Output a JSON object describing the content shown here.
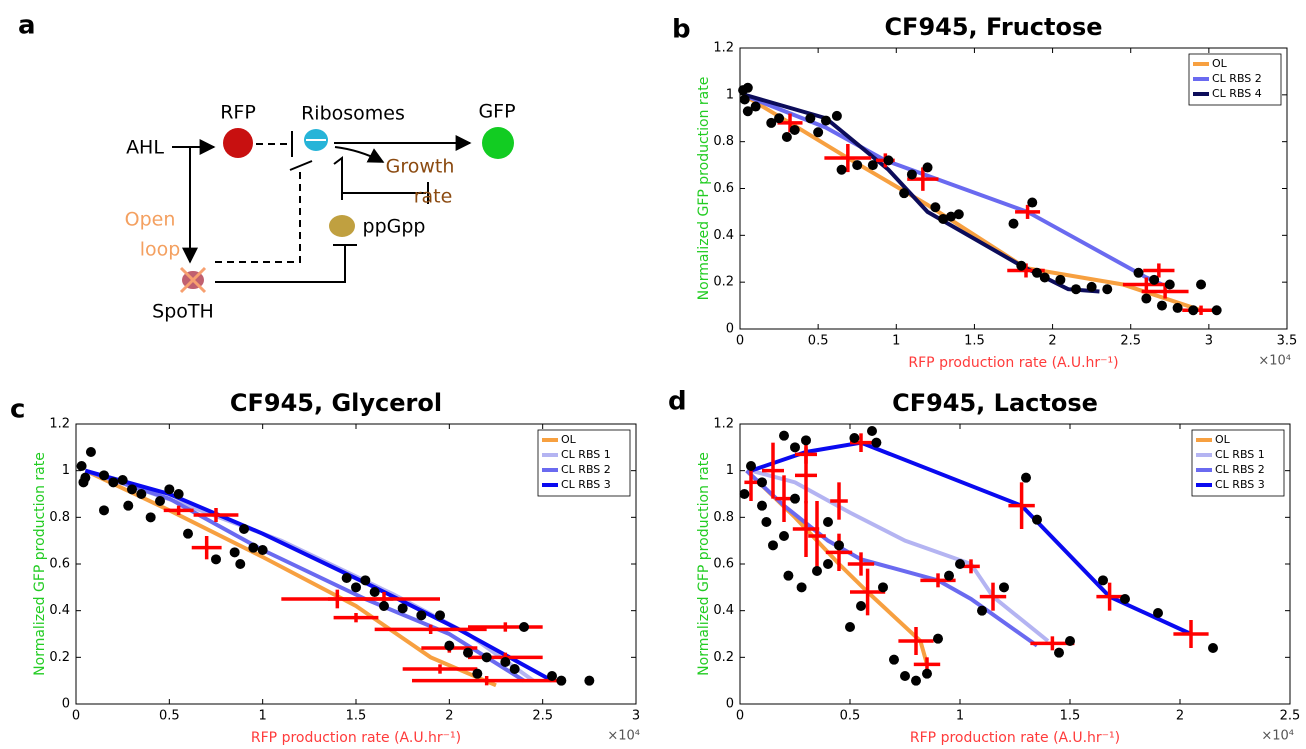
{
  "panel_labels": [
    "a",
    "b",
    "c",
    "d"
  ],
  "diagram": {
    "nodes": [
      {
        "label": "AHL"
      },
      {
        "label": "RFP"
      },
      {
        "label": "Ribosomes"
      },
      {
        "label": "GFP"
      },
      {
        "lines": [
          "Growth",
          "rate"
        ]
      },
      {
        "label": "ppGpp"
      },
      {
        "lines": [
          "Open",
          "loop"
        ]
      },
      {
        "label": "SpoTH"
      }
    ]
  },
  "chart_data": [
    {
      "type": "line",
      "title": "CF945, Fructose",
      "xlabel": "RFP production rate (A.U.hr⁻¹)",
      "ylabel": "Normalized GFP production rate",
      "xlabel_color": "#ff3b3b",
      "ylabel_color": "#22cc22",
      "x_exponent_label": "×10⁴",
      "xlim": [
        0,
        3.5
      ],
      "xticks": [
        0,
        0.5,
        1,
        1.5,
        2,
        2.5,
        3,
        3.5
      ],
      "ylim": [
        0,
        1.2
      ],
      "yticks": [
        0,
        0.2,
        0.4,
        0.6,
        0.8,
        1,
        1.2
      ],
      "legend": "upper right",
      "series": [
        {
          "name": "OL",
          "color": "#f7a040",
          "x": [
            0.02,
            0.32,
            0.69,
            1.2,
            1.83,
            2.45,
            2.95
          ],
          "values": [
            1.0,
            0.88,
            0.73,
            0.53,
            0.26,
            0.19,
            0.08
          ]
        },
        {
          "name": "CL RBS 2",
          "color": "#6a6af0",
          "x": [
            0.02,
            0.55,
            0.93,
            1.84,
            2.6,
            2.7
          ],
          "values": [
            1.0,
            0.86,
            0.72,
            0.5,
            0.22,
            0.19
          ]
        },
        {
          "name": "CL RBS 4",
          "color": "#0c0c5a",
          "x": [
            0.03,
            0.55,
            0.95,
            1.2,
            1.8,
            2.1,
            2.3
          ],
          "values": [
            1.0,
            0.9,
            0.68,
            0.5,
            0.27,
            0.17,
            0.16
          ]
        }
      ],
      "points": {
        "color": "#000000",
        "x": [
          0.02,
          0.05,
          0.03,
          0.1,
          0.05,
          0.2,
          0.25,
          0.35,
          0.3,
          0.45,
          0.5,
          0.55,
          0.62,
          0.65,
          0.75,
          0.85,
          0.95,
          1.05,
          1.1,
          1.2,
          1.25,
          1.35,
          1.3,
          1.4,
          1.75,
          1.8,
          1.9,
          1.87,
          1.95,
          2.05,
          2.15,
          2.25,
          2.35,
          2.55,
          2.6,
          2.7,
          2.8,
          2.9,
          3.05,
          2.95,
          2.65,
          2.75
        ],
        "y": [
          1.02,
          1.03,
          0.98,
          0.95,
          0.93,
          0.88,
          0.9,
          0.85,
          0.82,
          0.9,
          0.84,
          0.89,
          0.91,
          0.68,
          0.7,
          0.7,
          0.72,
          0.58,
          0.66,
          0.69,
          0.52,
          0.48,
          0.47,
          0.49,
          0.45,
          0.27,
          0.24,
          0.54,
          0.22,
          0.21,
          0.17,
          0.18,
          0.17,
          0.24,
          0.13,
          0.1,
          0.09,
          0.08,
          0.08,
          0.19,
          0.21,
          0.19
        ]
      },
      "error_bars": {
        "color": "#ff0000",
        "x": [
          0.32,
          0.69,
          0.93,
          1.17,
          1.84,
          1.83,
          2.6,
          2.68,
          2.72,
          2.95
        ],
        "y": [
          0.88,
          0.73,
          0.72,
          0.64,
          0.5,
          0.25,
          0.19,
          0.25,
          0.16,
          0.08
        ],
        "xerr": [
          0.08,
          0.15,
          0.06,
          0.1,
          0.08,
          0.12,
          0.15,
          0.1,
          0.15,
          0.12
        ],
        "yerr": [
          0.04,
          0.06,
          0.03,
          0.05,
          0.03,
          0.03,
          0.03,
          0.03,
          0.03,
          0.02
        ]
      }
    },
    {
      "type": "line",
      "title": "CF945, Glycerol",
      "xlabel": "RFP production rate (A.U.hr⁻¹)",
      "ylabel": "Normalized GFP production rate",
      "xlabel_color": "#ff3b3b",
      "ylabel_color": "#22cc22",
      "x_exponent_label": "×10⁴",
      "xlim": [
        0,
        3
      ],
      "xticks": [
        0,
        0.5,
        1,
        1.5,
        2,
        2.5,
        3
      ],
      "ylim": [
        0,
        1.2
      ],
      "yticks": [
        0,
        0.2,
        0.4,
        0.6,
        0.8,
        1,
        1.2
      ],
      "legend": "upper right",
      "series": [
        {
          "name": "OL",
          "color": "#f7a040",
          "x": [
            0.05,
            0.5,
            1.0,
            1.5,
            1.9,
            2.25
          ],
          "values": [
            1.0,
            0.83,
            0.63,
            0.42,
            0.2,
            0.08
          ]
        },
        {
          "name": "CL RBS 1",
          "color": "#b4b4f2",
          "x": [
            0.05,
            0.6,
            1.1,
            1.7,
            2.1,
            2.45
          ],
          "values": [
            1.0,
            0.85,
            0.7,
            0.47,
            0.3,
            0.1
          ]
        },
        {
          "name": "CL RBS 2",
          "color": "#6a6af0",
          "x": [
            0.05,
            0.5,
            1.0,
            1.55,
            2.0,
            2.4
          ],
          "values": [
            1.0,
            0.88,
            0.66,
            0.45,
            0.3,
            0.1
          ]
        },
        {
          "name": "CL RBS 3",
          "color": "#0a0af0",
          "x": [
            0.05,
            0.5,
            1.0,
            1.6,
            2.05,
            2.55
          ],
          "values": [
            1.0,
            0.9,
            0.73,
            0.5,
            0.32,
            0.1
          ]
        }
      ],
      "points": {
        "color": "#000000",
        "x": [
          0.03,
          0.05,
          0.04,
          0.08,
          0.15,
          0.2,
          0.25,
          0.3,
          0.28,
          0.35,
          0.45,
          0.5,
          0.55,
          0.4,
          0.6,
          0.75,
          0.85,
          0.9,
          0.95,
          0.88,
          1.0,
          1.45,
          1.55,
          1.5,
          1.6,
          1.65,
          1.75,
          1.85,
          2.0,
          2.1,
          2.2,
          2.3,
          2.4,
          2.35,
          2.55,
          2.6,
          2.75,
          1.95,
          2.15,
          0.15
        ],
        "y": [
          1.02,
          0.97,
          0.95,
          1.08,
          0.98,
          0.95,
          0.96,
          0.92,
          0.85,
          0.9,
          0.87,
          0.92,
          0.9,
          0.8,
          0.73,
          0.62,
          0.65,
          0.75,
          0.67,
          0.6,
          0.66,
          0.54,
          0.53,
          0.5,
          0.48,
          0.42,
          0.41,
          0.38,
          0.25,
          0.22,
          0.2,
          0.18,
          0.33,
          0.15,
          0.12,
          0.1,
          0.1,
          0.38,
          0.13,
          0.83
        ]
      },
      "error_bars": {
        "color": "#ff0000",
        "x": [
          0.55,
          0.75,
          0.7,
          1.4,
          1.5,
          1.65,
          1.9,
          2.0,
          2.3,
          2.3,
          1.95,
          2.2
        ],
        "y": [
          0.83,
          0.81,
          0.67,
          0.45,
          0.37,
          0.45,
          0.32,
          0.24,
          0.33,
          0.2,
          0.15,
          0.1
        ],
        "xerr": [
          0.08,
          0.12,
          0.08,
          0.3,
          0.12,
          0.3,
          0.3,
          0.15,
          0.2,
          0.2,
          0.2,
          0.4
        ],
        "yerr": [
          0.02,
          0.03,
          0.05,
          0.04,
          0.02,
          0.03,
          0.02,
          0.02,
          0.02,
          0.02,
          0.02,
          0.02
        ]
      }
    },
    {
      "type": "line",
      "title": "CF945, Lactose",
      "xlabel": "RFP production rate (A.U.hr⁻¹)",
      "ylabel": "Normalized GFP production rate",
      "xlabel_color": "#ff3b3b",
      "ylabel_color": "#22cc22",
      "x_exponent_label": "×10⁴",
      "xlim": [
        0,
        2.5
      ],
      "xticks": [
        0,
        0.5,
        1,
        1.5,
        2,
        2.5
      ],
      "ylim": [
        0,
        1.2
      ],
      "yticks": [
        0,
        0.2,
        0.4,
        0.6,
        0.8,
        1,
        1.2
      ],
      "legend": "upper right",
      "series": [
        {
          "name": "OL",
          "color": "#f7a040",
          "x": [
            0.03,
            0.25,
            0.45,
            0.58,
            0.82,
            0.85
          ],
          "values": [
            1.0,
            0.8,
            0.6,
            0.48,
            0.27,
            0.17
          ]
        },
        {
          "name": "CL RBS 1",
          "color": "#b4b4f2",
          "x": [
            0.05,
            0.25,
            0.5,
            0.75,
            1.05,
            1.15,
            1.4
          ],
          "values": [
            1.0,
            0.95,
            0.82,
            0.7,
            0.6,
            0.46,
            0.27
          ]
        },
        {
          "name": "CL RBS 2",
          "color": "#6a6af0",
          "x": [
            0.03,
            0.2,
            0.4,
            0.55,
            0.9,
            1.05,
            1.35
          ],
          "values": [
            1.0,
            0.85,
            0.7,
            0.62,
            0.53,
            0.45,
            0.25
          ]
        },
        {
          "name": "CL RBS 3",
          "color": "#0a0af0",
          "x": [
            0.05,
            0.3,
            0.55,
            1.28,
            1.68,
            2.05
          ],
          "values": [
            1.0,
            1.08,
            1.12,
            0.85,
            0.46,
            0.3
          ]
        }
      ],
      "points": {
        "color": "#000000",
        "x": [
          0.02,
          0.05,
          0.1,
          0.12,
          0.15,
          0.2,
          0.22,
          0.25,
          0.28,
          0.3,
          0.35,
          0.4,
          0.45,
          0.5,
          0.52,
          0.6,
          0.62,
          0.65,
          0.7,
          0.75,
          0.8,
          0.85,
          0.9,
          0.95,
          1.0,
          1.1,
          1.2,
          1.3,
          1.35,
          1.45,
          1.5,
          1.65,
          1.75,
          1.9,
          2.15,
          0.2,
          0.4,
          0.25,
          0.55,
          0.1
        ],
        "y": [
          0.9,
          1.02,
          0.85,
          0.78,
          0.68,
          1.15,
          0.55,
          1.1,
          0.5,
          1.13,
          0.57,
          0.6,
          0.68,
          0.33,
          1.14,
          1.17,
          1.12,
          0.5,
          0.19,
          0.12,
          0.1,
          0.13,
          0.28,
          0.55,
          0.6,
          0.4,
          0.5,
          0.97,
          0.79,
          0.22,
          0.27,
          0.53,
          0.45,
          0.39,
          0.24,
          0.72,
          0.78,
          0.88,
          0.42,
          0.95
        ]
      },
      "error_bars": {
        "color": "#ff0000",
        "x": [
          0.05,
          0.15,
          0.3,
          0.45,
          0.2,
          0.3,
          0.35,
          0.45,
          0.55,
          0.58,
          0.8,
          0.85,
          0.9,
          1.05,
          1.15,
          1.28,
          1.42,
          1.68,
          2.05,
          0.55,
          0.3
        ],
        "y": [
          0.95,
          1.0,
          0.98,
          0.87,
          0.88,
          0.75,
          0.72,
          0.65,
          0.6,
          0.48,
          0.27,
          0.17,
          0.53,
          0.59,
          0.46,
          0.85,
          0.26,
          0.46,
          0.3,
          1.12,
          1.07
        ],
        "xerr": [
          0.03,
          0.05,
          0.05,
          0.04,
          0.04,
          0.06,
          0.04,
          0.06,
          0.06,
          0.08,
          0.08,
          0.06,
          0.08,
          0.04,
          0.06,
          0.06,
          0.1,
          0.06,
          0.08,
          0.05,
          0.05
        ],
        "yerr": [
          0.08,
          0.12,
          0.12,
          0.08,
          0.1,
          0.12,
          0.15,
          0.08,
          0.05,
          0.1,
          0.06,
          0.03,
          0.03,
          0.03,
          0.06,
          0.1,
          0.03,
          0.06,
          0.06,
          0.04,
          0.04
        ]
      }
    }
  ]
}
